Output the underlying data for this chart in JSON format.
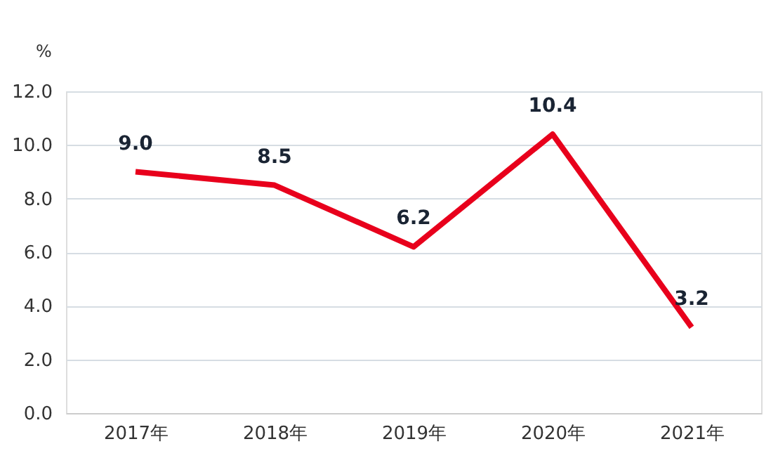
{
  "chart_data": {
    "type": "line",
    "ylabel": "%",
    "categories": [
      "2017年",
      "2018年",
      "2019年",
      "2020年",
      "2021年"
    ],
    "series": [
      {
        "color": "#e8001c",
        "values": [
          9.0,
          8.5,
          6.2,
          10.4,
          3.2
        ]
      }
    ],
    "value_labels": [
      "9.0",
      "8.5",
      "6.2",
      "10.4",
      "3.2"
    ],
    "ylim": [
      0,
      12
    ],
    "yticks": [
      {
        "value": 0,
        "label": "0.0"
      },
      {
        "value": 2,
        "label": "2.0"
      },
      {
        "value": 4,
        "label": "4.0"
      },
      {
        "value": 6,
        "label": "6.0"
      },
      {
        "value": 8,
        "label": "8.0"
      },
      {
        "value": 10,
        "label": "10.0"
      },
      {
        "value": 12,
        "label": "12.0"
      }
    ],
    "grid": "y",
    "marker": "none",
    "line_style": "solid"
  }
}
